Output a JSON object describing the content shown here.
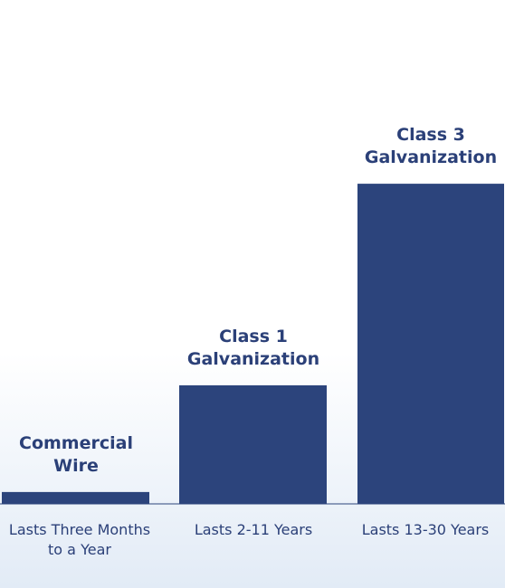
{
  "chart_data": {
    "type": "bar",
    "title": "",
    "xlabel": "",
    "ylabel": "",
    "categories": [
      "Lasts Three Months\nto a Year",
      "Lasts 2-11 Years",
      "Lasts 13-30 Years"
    ],
    "series": [
      {
        "labels": [
          "Commercial\nWire",
          "Class 1\nGalvanization",
          "Class 3\nGalvanization"
        ],
        "values": [
          1,
          10,
          27
        ]
      }
    ],
    "ylim": [
      0,
      28
    ],
    "grid": false,
    "legend": "none"
  },
  "colors": {
    "bar": "#2c447c",
    "text": "#2b4078",
    "baseline": "#2c447c"
  }
}
